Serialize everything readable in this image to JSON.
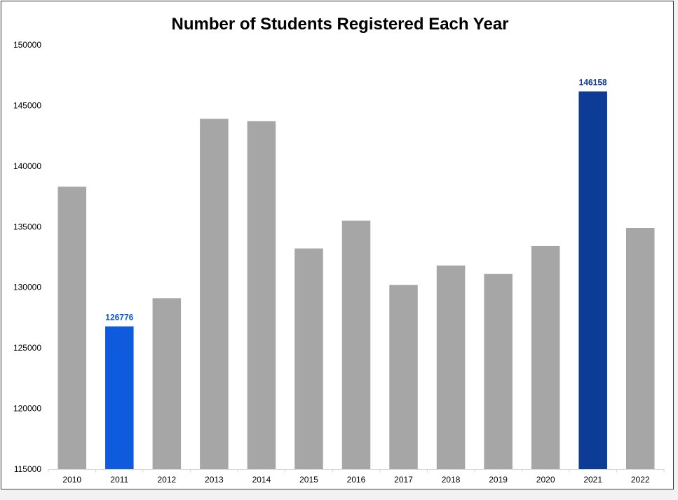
{
  "chart_data": {
    "type": "bar",
    "title": "Number of Students Registered Each Year",
    "xlabel": "",
    "ylabel": "",
    "categories": [
      "2010",
      "2011",
      "2012",
      "2013",
      "2014",
      "2015",
      "2016",
      "2017",
      "2018",
      "2019",
      "2020",
      "2021",
      "2022"
    ],
    "values": [
      138300,
      126776,
      129100,
      143900,
      143700,
      133200,
      135500,
      130200,
      131800,
      131100,
      133400,
      146158,
      134900
    ],
    "ylim": [
      115000,
      150000
    ],
    "yticks": [
      "115000",
      "120000",
      "125000",
      "130000",
      "135000",
      "140000",
      "145000",
      "150000"
    ],
    "grid": false,
    "legend": "none",
    "colors": {
      "default": "#a6a6a6",
      "min_highlight": "#0f5bdd",
      "max_highlight": "#0c3c96"
    },
    "highlights": [
      {
        "category": "2011",
        "label": "126776",
        "color": "#0f5bdd"
      },
      {
        "category": "2021",
        "label": "146158",
        "color": "#0c3c96"
      }
    ]
  }
}
